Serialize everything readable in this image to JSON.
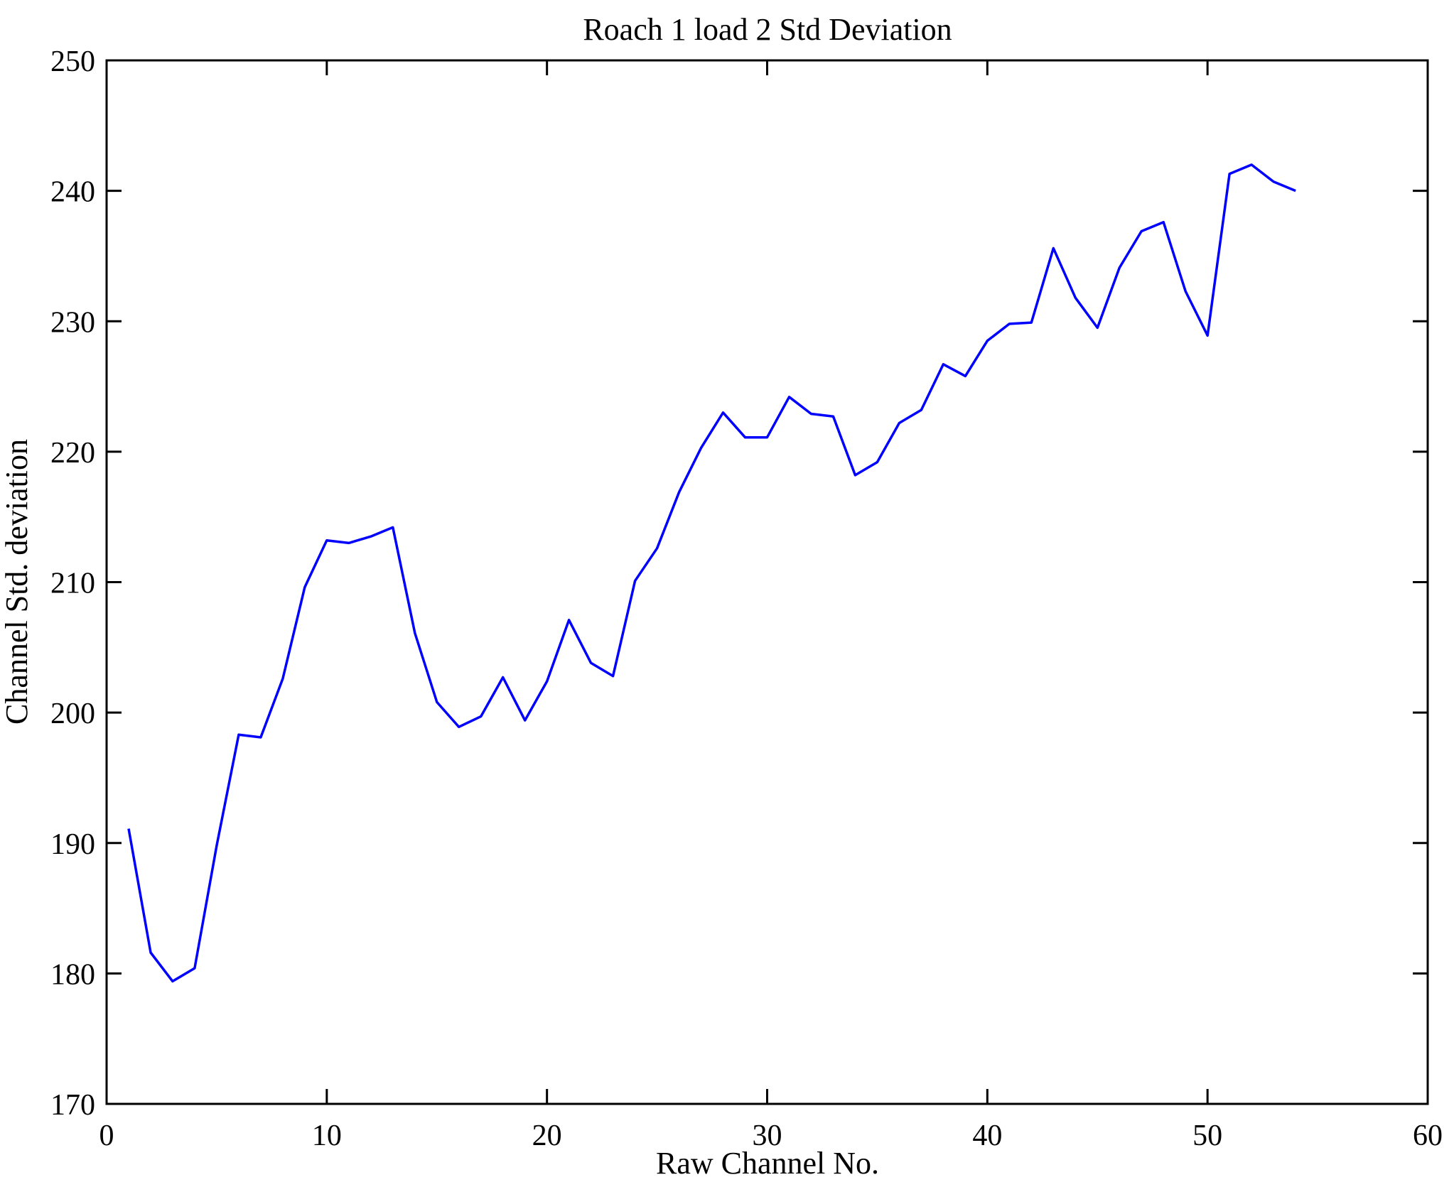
{
  "chart_data": {
    "type": "line",
    "title": "Roach 1 load 2 Std Deviation",
    "xlabel": "Raw Channel No.",
    "ylabel": "Channel Std. deviation",
    "x": [
      1,
      2,
      3,
      4,
      5,
      6,
      7,
      8,
      9,
      10,
      11,
      12,
      13,
      14,
      15,
      16,
      17,
      18,
      19,
      20,
      21,
      22,
      23,
      24,
      25,
      26,
      27,
      28,
      29,
      30,
      31,
      32,
      33,
      34,
      35,
      36,
      37,
      38,
      39,
      40,
      41,
      42,
      43,
      44,
      45,
      46,
      47,
      48,
      49,
      50,
      51,
      52,
      53,
      54
    ],
    "values": [
      191.1,
      181.6,
      179.4,
      180.4,
      189.8,
      198.3,
      198.1,
      202.6,
      209.6,
      213.2,
      213.0,
      213.5,
      214.2,
      206.1,
      200.8,
      198.9,
      199.7,
      202.7,
      199.4,
      202.4,
      207.1,
      203.8,
      202.8,
      210.1,
      212.6,
      216.9,
      220.3,
      223.0,
      221.1,
      221.1,
      224.2,
      222.9,
      222.7,
      218.2,
      219.2,
      222.2,
      223.2,
      226.7,
      225.8,
      228.5,
      229.8,
      229.9,
      235.6,
      231.8,
      229.5,
      234.1,
      236.9,
      237.6,
      232.3,
      228.9,
      241.3,
      242.0,
      240.7,
      240.0
    ],
    "xlim": [
      0,
      60
    ],
    "ylim": [
      170,
      250
    ],
    "xticks": [
      0,
      10,
      20,
      30,
      40,
      50,
      60
    ],
    "yticks": [
      170,
      180,
      190,
      200,
      210,
      220,
      230,
      240,
      250
    ],
    "line_color": "#0000ff",
    "axis_color": "#000000",
    "background": "#ffffff",
    "grid": false,
    "legend_position": "none"
  }
}
